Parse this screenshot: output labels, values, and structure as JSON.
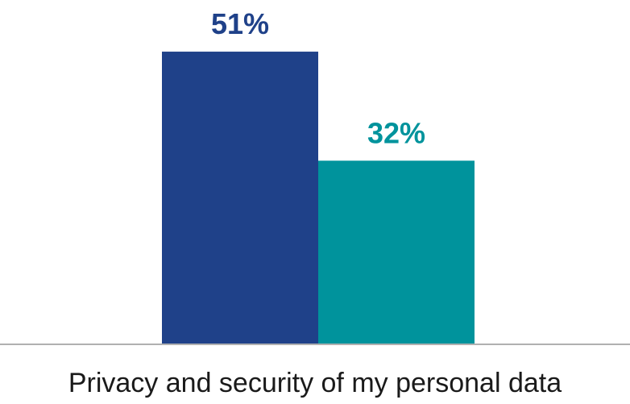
{
  "chart_data": {
    "type": "bar",
    "categories": [
      "Privacy and security of my personal data"
    ],
    "series": [
      {
        "values": [
          51
        ],
        "labels": [
          "51%"
        ],
        "color": "#1f4189"
      },
      {
        "values": [
          32
        ],
        "labels": [
          "32%"
        ],
        "color": "#00939c"
      }
    ],
    "ylim": [
      0,
      60
    ],
    "grid": false,
    "axis_color": "#b0b0b0"
  }
}
